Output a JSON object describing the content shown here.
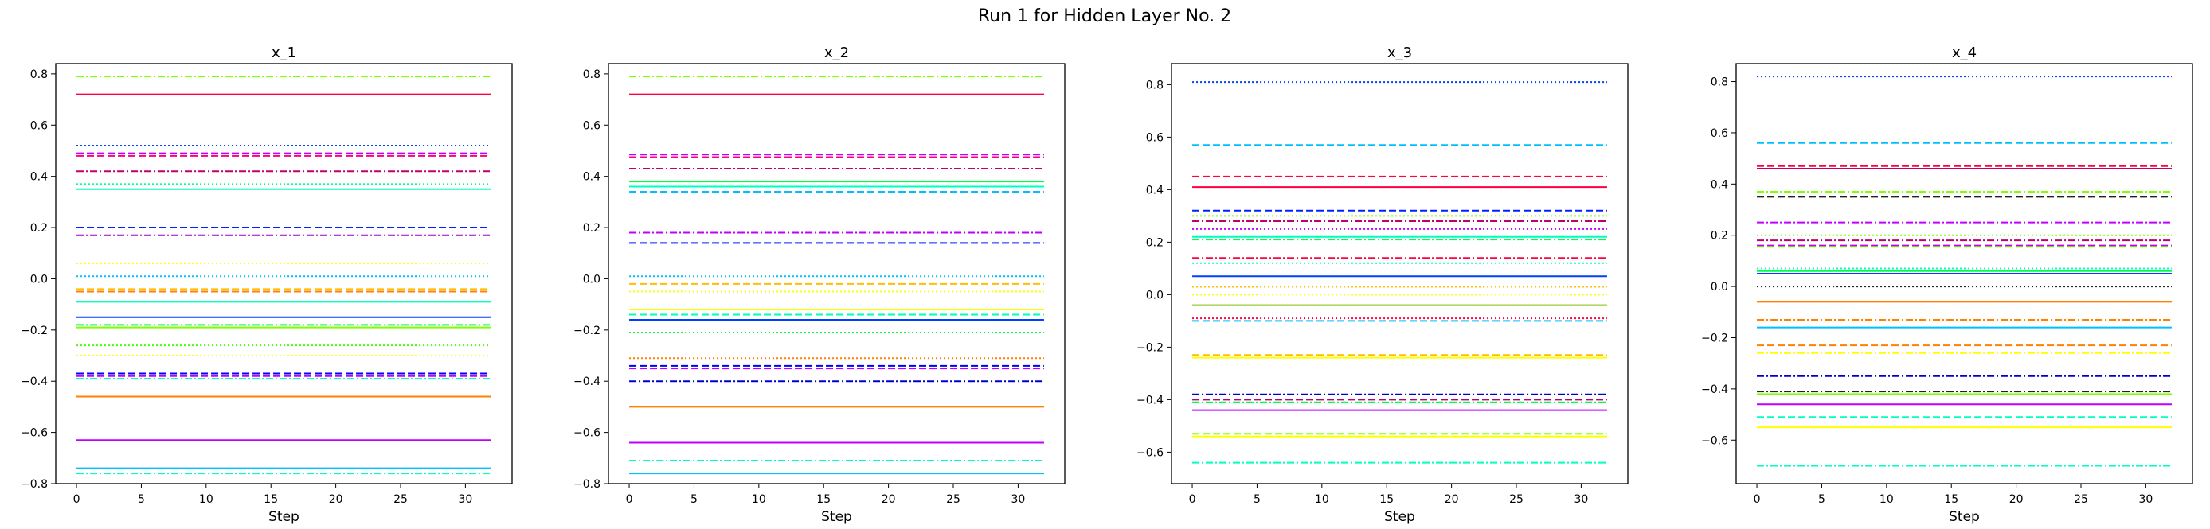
{
  "figure": {
    "suptitle": "Run 1 for Hidden Layer No. 2"
  },
  "chart_data": [
    {
      "type": "line",
      "title": "x_1",
      "xlabel": "Step",
      "ylabel": "",
      "xlim": [
        -1.6,
        33.6
      ],
      "ylim": [
        -0.8,
        0.84
      ],
      "xticks": [
        0,
        5,
        10,
        15,
        20,
        25,
        30
      ],
      "yticks": [
        -0.8,
        -0.6,
        -0.4,
        -0.2,
        0.0,
        0.2,
        0.4,
        0.6,
        0.8
      ],
      "ytick_labels": [
        "−0.8",
        "−0.6",
        "−0.4",
        "−0.2",
        "0.0",
        "0.2",
        "0.4",
        "0.6",
        "0.8"
      ],
      "x_range": [
        0,
        32
      ],
      "grid": false,
      "series": [
        {
          "value": 0.79,
          "color": "#80ff00",
          "style": "dashdot"
        },
        {
          "value": 0.72,
          "color": "#ff0040",
          "style": "solid"
        },
        {
          "value": 0.52,
          "color": "#0040ff",
          "style": "dotted"
        },
        {
          "value": 0.49,
          "color": "#bf00ff",
          "style": "dashed"
        },
        {
          "value": 0.48,
          "color": "#ff0080",
          "style": "dashed"
        },
        {
          "value": 0.42,
          "color": "#c0006a",
          "style": "dashdot"
        },
        {
          "value": 0.37,
          "color": "#00ff80",
          "style": "dotted"
        },
        {
          "value": 0.35,
          "color": "#00ffbf",
          "style": "solid"
        },
        {
          "value": 0.2,
          "color": "#0020ff",
          "style": "dashed"
        },
        {
          "value": 0.17,
          "color": "#9900cc",
          "style": "dashdot"
        },
        {
          "value": 0.06,
          "color": "#ffff00",
          "style": "dotted"
        },
        {
          "value": 0.01,
          "color": "#00bfff",
          "style": "dotted"
        },
        {
          "value": -0.04,
          "color": "#ffbf00",
          "style": "dashed"
        },
        {
          "value": -0.05,
          "color": "#ff8000",
          "style": "dashed"
        },
        {
          "value": -0.09,
          "color": "#00ffbf",
          "style": "solid"
        },
        {
          "value": -0.15,
          "color": "#0040ff",
          "style": "solid"
        },
        {
          "value": -0.18,
          "color": "#00ff40",
          "style": "dashdot"
        },
        {
          "value": -0.19,
          "color": "#80ff00",
          "style": "solid"
        },
        {
          "value": -0.26,
          "color": "#40ff00",
          "style": "dotted"
        },
        {
          "value": -0.3,
          "color": "#ffff00",
          "style": "dotted"
        },
        {
          "value": -0.37,
          "color": "#0000ff",
          "style": "dashed"
        },
        {
          "value": -0.38,
          "color": "#bf00ff",
          "style": "dashed"
        },
        {
          "value": -0.39,
          "color": "#00ffbf",
          "style": "dashdot"
        },
        {
          "value": -0.46,
          "color": "#ff8000",
          "style": "solid"
        },
        {
          "value": -0.63,
          "color": "#bf00ff",
          "style": "solid"
        },
        {
          "value": -0.74,
          "color": "#00bfff",
          "style": "solid"
        },
        {
          "value": -0.76,
          "color": "#00ffbf",
          "style": "dashdot"
        }
      ]
    },
    {
      "type": "line",
      "title": "x_2",
      "xlabel": "Step",
      "ylabel": "",
      "xlim": [
        -1.6,
        33.6
      ],
      "ylim": [
        -0.8,
        0.84
      ],
      "xticks": [
        0,
        5,
        10,
        15,
        20,
        25,
        30
      ],
      "yticks": [
        -0.8,
        -0.6,
        -0.4,
        -0.2,
        0.0,
        0.2,
        0.4,
        0.6,
        0.8
      ],
      "ytick_labels": [
        "−0.8",
        "−0.6",
        "−0.4",
        "−0.2",
        "0.0",
        "0.2",
        "0.4",
        "0.6",
        "0.8"
      ],
      "x_range": [
        0,
        32
      ],
      "grid": false,
      "series": [
        {
          "value": 0.79,
          "color": "#80ff00",
          "style": "dashdot"
        },
        {
          "value": 0.72,
          "color": "#ff0040",
          "style": "solid"
        },
        {
          "value": 0.485,
          "color": "#bf00ff",
          "style": "dashed"
        },
        {
          "value": 0.475,
          "color": "#ff0080",
          "style": "dashed"
        },
        {
          "value": 0.43,
          "color": "#c0006a",
          "style": "dashdot"
        },
        {
          "value": 0.38,
          "color": "#00ff40",
          "style": "solid"
        },
        {
          "value": 0.36,
          "color": "#00ffbf",
          "style": "solid"
        },
        {
          "value": 0.34,
          "color": "#00bfff",
          "style": "dashed"
        },
        {
          "value": 0.18,
          "color": "#bf00ff",
          "style": "dashdot"
        },
        {
          "value": 0.14,
          "color": "#0020ff",
          "style": "dashed"
        },
        {
          "value": 0.01,
          "color": "#00bfff",
          "style": "dotted"
        },
        {
          "value": -0.02,
          "color": "#ffbf00",
          "style": "dashed"
        },
        {
          "value": -0.05,
          "color": "#ffff00",
          "style": "dotted"
        },
        {
          "value": -0.12,
          "color": "#ffff00",
          "style": "solid"
        },
        {
          "value": -0.14,
          "color": "#00ffbf",
          "style": "dashed"
        },
        {
          "value": -0.16,
          "color": "#0040ff",
          "style": "solid"
        },
        {
          "value": -0.21,
          "color": "#00ff40",
          "style": "dotted"
        },
        {
          "value": -0.31,
          "color": "#ff8000",
          "style": "dotted"
        },
        {
          "value": -0.34,
          "color": "#0000ff",
          "style": "dashed"
        },
        {
          "value": -0.35,
          "color": "#bf00ff",
          "style": "dashed"
        },
        {
          "value": -0.4,
          "color": "#0000cc",
          "style": "dashdot"
        },
        {
          "value": -0.5,
          "color": "#ff8000",
          "style": "solid"
        },
        {
          "value": -0.64,
          "color": "#bf00ff",
          "style": "solid"
        },
        {
          "value": -0.71,
          "color": "#00ffbf",
          "style": "dashdot"
        },
        {
          "value": -0.76,
          "color": "#00bfff",
          "style": "solid"
        }
      ]
    },
    {
      "type": "line",
      "title": "x_3",
      "xlabel": "Step",
      "ylabel": "",
      "xlim": [
        -1.6,
        33.6
      ],
      "ylim": [
        -0.72,
        0.88
      ],
      "xticks": [
        0,
        5,
        10,
        15,
        20,
        25,
        30
      ],
      "yticks": [
        -0.6,
        -0.4,
        -0.2,
        0.0,
        0.2,
        0.4,
        0.6,
        0.8
      ],
      "ytick_labels": [
        "−0.6",
        "−0.4",
        "−0.2",
        "0.0",
        "0.2",
        "0.4",
        "0.6",
        "0.8"
      ],
      "x_range": [
        0,
        32
      ],
      "grid": false,
      "series": [
        {
          "value": 0.81,
          "color": "#0040ff",
          "style": "dotted"
        },
        {
          "value": 0.57,
          "color": "#00bfff",
          "style": "dashed"
        },
        {
          "value": 0.45,
          "color": "#ff0040",
          "style": "dashed"
        },
        {
          "value": 0.41,
          "color": "#ff0040",
          "style": "solid"
        },
        {
          "value": 0.32,
          "color": "#0020ff",
          "style": "dashed"
        },
        {
          "value": 0.3,
          "color": "#80ff00",
          "style": "dotted"
        },
        {
          "value": 0.28,
          "color": "#c0006a",
          "style": "dashdot"
        },
        {
          "value": 0.25,
          "color": "#bf00ff",
          "style": "dotted"
        },
        {
          "value": 0.22,
          "color": "#00ffbf",
          "style": "solid"
        },
        {
          "value": 0.21,
          "color": "#00ff40",
          "style": "dashdot"
        },
        {
          "value": 0.14,
          "color": "#ff0040",
          "style": "dashdot"
        },
        {
          "value": 0.12,
          "color": "#00ffbf",
          "style": "dotted"
        },
        {
          "value": 0.07,
          "color": "#0040ff",
          "style": "solid"
        },
        {
          "value": 0.03,
          "color": "#ffbf00",
          "style": "dotted"
        },
        {
          "value": 0.0,
          "color": "#ffff00",
          "style": "dotted"
        },
        {
          "value": -0.04,
          "color": "#80bf00",
          "style": "solid"
        },
        {
          "value": -0.09,
          "color": "#ff0040",
          "style": "dotted"
        },
        {
          "value": -0.1,
          "color": "#00bfff",
          "style": "dashed"
        },
        {
          "value": -0.23,
          "color": "#ffbf00",
          "style": "dashed"
        },
        {
          "value": -0.24,
          "color": "#ffff00",
          "style": "solid"
        },
        {
          "value": -0.38,
          "color": "#0000cc",
          "style": "dashdot"
        },
        {
          "value": -0.4,
          "color": "#c0006a",
          "style": "dashed"
        },
        {
          "value": -0.41,
          "color": "#00ff40",
          "style": "dashdot"
        },
        {
          "value": -0.44,
          "color": "#bf00ff",
          "style": "solid"
        },
        {
          "value": -0.53,
          "color": "#80ff00",
          "style": "dashed"
        },
        {
          "value": -0.54,
          "color": "#ffff00",
          "style": "solid"
        },
        {
          "value": -0.64,
          "color": "#00ffbf",
          "style": "dashdot"
        }
      ]
    },
    {
      "type": "line",
      "title": "x_4",
      "xlabel": "Step",
      "ylabel": "",
      "xlim": [
        -1.6,
        33.6
      ],
      "ylim": [
        -0.77,
        0.87
      ],
      "xticks": [
        0,
        5,
        10,
        15,
        20,
        25,
        30
      ],
      "yticks": [
        -0.6,
        -0.4,
        -0.2,
        0.0,
        0.2,
        0.4,
        0.6,
        0.8
      ],
      "ytick_labels": [
        "−0.6",
        "−0.4",
        "−0.2",
        "0.0",
        "0.2",
        "0.4",
        "0.6",
        "0.8"
      ],
      "x_range": [
        0,
        32
      ],
      "grid": false,
      "series": [
        {
          "value": 0.82,
          "color": "#0040ff",
          "style": "dotted"
        },
        {
          "value": 0.56,
          "color": "#00bfff",
          "style": "dashed"
        },
        {
          "value": 0.47,
          "color": "#ff0040",
          "style": "dashed"
        },
        {
          "value": 0.46,
          "color": "#c0006a",
          "style": "solid"
        },
        {
          "value": 0.37,
          "color": "#80ff00",
          "style": "dashdot"
        },
        {
          "value": 0.35,
          "color": "#202020",
          "style": "dashed"
        },
        {
          "value": 0.25,
          "color": "#bf00ff",
          "style": "dashdot"
        },
        {
          "value": 0.2,
          "color": "#80ff00",
          "style": "dotted"
        },
        {
          "value": 0.18,
          "color": "#c0006a",
          "style": "dashdot"
        },
        {
          "value": 0.16,
          "color": "#bf00ff",
          "style": "dashed"
        },
        {
          "value": 0.155,
          "color": "#80ff00",
          "style": "dashed"
        },
        {
          "value": 0.07,
          "color": "#00ffbf",
          "style": "dotted"
        },
        {
          "value": 0.06,
          "color": "#00ff40",
          "style": "solid"
        },
        {
          "value": 0.05,
          "color": "#0040ff",
          "style": "solid"
        },
        {
          "value": 0.0,
          "color": "#202020",
          "style": "dotted"
        },
        {
          "value": -0.06,
          "color": "#ff8000",
          "style": "solid"
        },
        {
          "value": -0.13,
          "color": "#ff8000",
          "style": "dashdot"
        },
        {
          "value": -0.16,
          "color": "#00bfff",
          "style": "solid"
        },
        {
          "value": -0.23,
          "color": "#ff8000",
          "style": "dashed"
        },
        {
          "value": -0.26,
          "color": "#ffff00",
          "style": "dashdot"
        },
        {
          "value": -0.35,
          "color": "#0000cc",
          "style": "dashdot"
        },
        {
          "value": -0.41,
          "color": "#202020",
          "style": "dashdot"
        },
        {
          "value": -0.42,
          "color": "#80ff00",
          "style": "solid"
        },
        {
          "value": -0.46,
          "color": "#bf00ff",
          "style": "solid"
        },
        {
          "value": -0.51,
          "color": "#00ffbf",
          "style": "dashed"
        },
        {
          "value": -0.55,
          "color": "#ffff00",
          "style": "solid"
        },
        {
          "value": -0.7,
          "color": "#00ffbf",
          "style": "dashdot"
        }
      ]
    }
  ]
}
